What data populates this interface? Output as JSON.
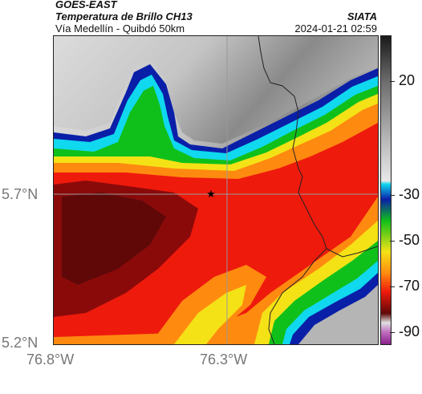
{
  "header": {
    "satellite": "GOES-EAST",
    "product": "Temperatura de Brillo CH13",
    "region": "Vía Medellín - Quibdó 50km",
    "agency": "SIATA",
    "datetime": "2024-01-21 02:59"
  },
  "axes": {
    "lat_ticks": [
      "5.7°N",
      "5.2°N"
    ],
    "lon_ticks": [
      "76.8°W",
      "76.3°W"
    ]
  },
  "colorbar": {
    "ticks": [
      "20",
      "-30",
      "-50",
      "-70",
      "-90"
    ],
    "values": [
      20,
      -30,
      -50,
      -70,
      -90
    ],
    "range": [
      -95,
      40
    ]
  },
  "map": {
    "marker": "star-icon",
    "colors": {
      "warm_cloudfree": "#9a9a9a",
      "blue": "#0a1fa8",
      "cyan": "#10d8ef",
      "green": "#10c01a",
      "yellow": "#f4e216",
      "orange": "#ff8a10",
      "red": "#ee1a0c",
      "darkred": "#8a0a0a"
    }
  }
}
